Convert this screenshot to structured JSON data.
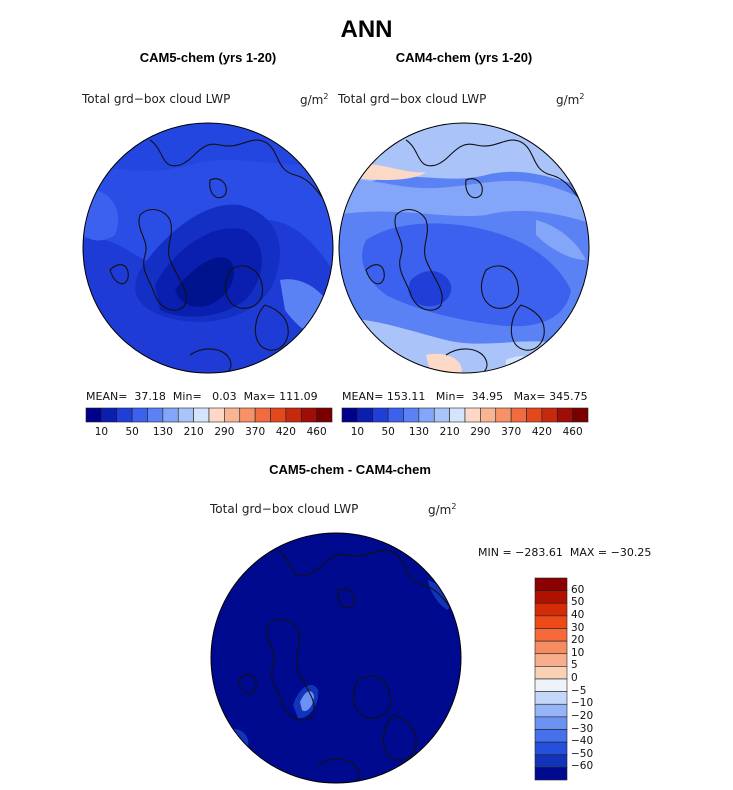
{
  "title": "ANN",
  "panels": [
    {
      "title": "CAM5-chem (yrs 1-20)",
      "field": "Total grd−box cloud LWP",
      "units": "g/m",
      "units_exp": "2",
      "stats": {
        "mean_label": "MEAN=",
        "mean": "37.18",
        "min_label": "Min=",
        "min": "0.03",
        "max_label": "Max=",
        "max": "111.09"
      }
    },
    {
      "title": "CAM4-chem (yrs 1-20)",
      "field": "Total grd−box cloud LWP",
      "units": "g/m",
      "units_exp": "2",
      "stats": {
        "mean_label": "MEAN=",
        "mean": "153.11",
        "min_label": "Min=",
        "min": "34.95",
        "max_label": "Max=",
        "max": "345.75"
      }
    },
    {
      "title": "CAM5-chem - CAM4-chem",
      "field": "Total grd−box cloud LWP",
      "units": "g/m",
      "units_exp": "2",
      "minmax": "MIN = −283.61  MAX = −30.25"
    }
  ],
  "colorbar_abs": {
    "labels": [
      "10",
      "50",
      "130",
      "210",
      "290",
      "370",
      "420",
      "460"
    ],
    "colors": [
      "#00008b",
      "#0a1fb0",
      "#1f3fd8",
      "#3c61ee",
      "#5b82f4",
      "#84a6f8",
      "#aac4fa",
      "#d5e3fb",
      "#fbd9c6",
      "#f8b593",
      "#f69268",
      "#f16b40",
      "#e24a1e",
      "#c52a0f",
      "#9e0d06",
      "#7a0000"
    ]
  },
  "colorbar_diff": {
    "labels": [
      "60",
      "50",
      "40",
      "30",
      "20",
      "10",
      "5",
      "0",
      "−5",
      "−10",
      "−20",
      "−30",
      "−40",
      "−50",
      "−60"
    ],
    "colors": [
      "#8b0000",
      "#b01000",
      "#d42c06",
      "#ee4a18",
      "#f56a3a",
      "#f68c62",
      "#f8ae8c",
      "#fbd1b6",
      "#eef2fb",
      "#c4d6fa",
      "#96b5f6",
      "#6b92f2",
      "#4670ec",
      "#2550dc",
      "#1234bb",
      "#000a8e"
    ]
  }
}
